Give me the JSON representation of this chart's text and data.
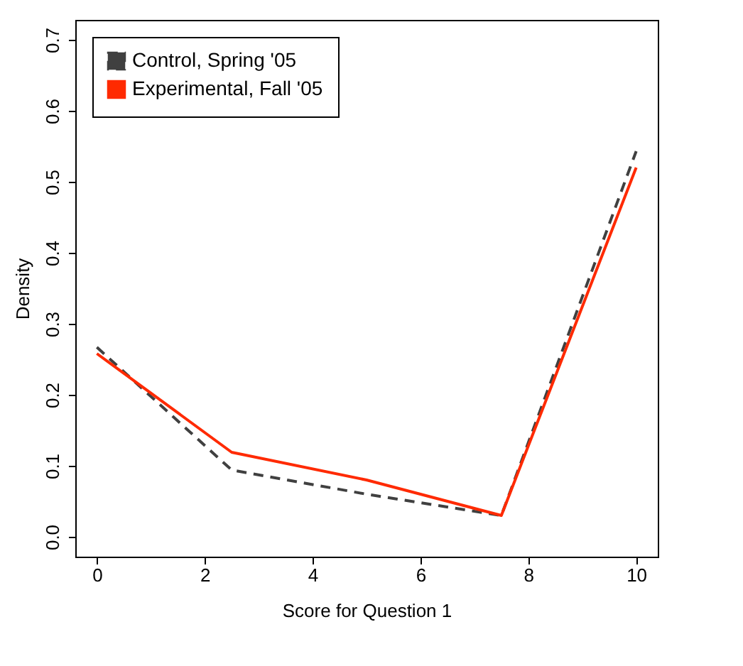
{
  "chart_data": {
    "type": "line",
    "xlabel": "Score for Question 1",
    "ylabel": "Density",
    "x": [
      0,
      2.5,
      5,
      7.5,
      10
    ],
    "xlim": [
      -0.4,
      10.4
    ],
    "xticks": [
      0,
      2,
      4,
      6,
      8,
      10
    ],
    "ylim": [
      -0.028,
      0.728
    ],
    "yticks": [
      {
        "value": 0,
        "label": "0.0"
      },
      0.1,
      0.2,
      0.3,
      0.4,
      0.5,
      0.6,
      0.7
    ],
    "grid": false,
    "legend": "top left",
    "series": [
      {
        "name": "Control, Spring '05",
        "color": "#404040",
        "line_style": "dashed",
        "values": [
          0.267,
          0.094,
          0.06,
          0.03,
          0.543
        ]
      },
      {
        "name": "Experimental, Fall '05",
        "color": "#ff2a00",
        "line_style": "solid",
        "values": [
          0.258,
          0.119,
          0.08,
          0.03,
          0.52
        ]
      }
    ]
  }
}
